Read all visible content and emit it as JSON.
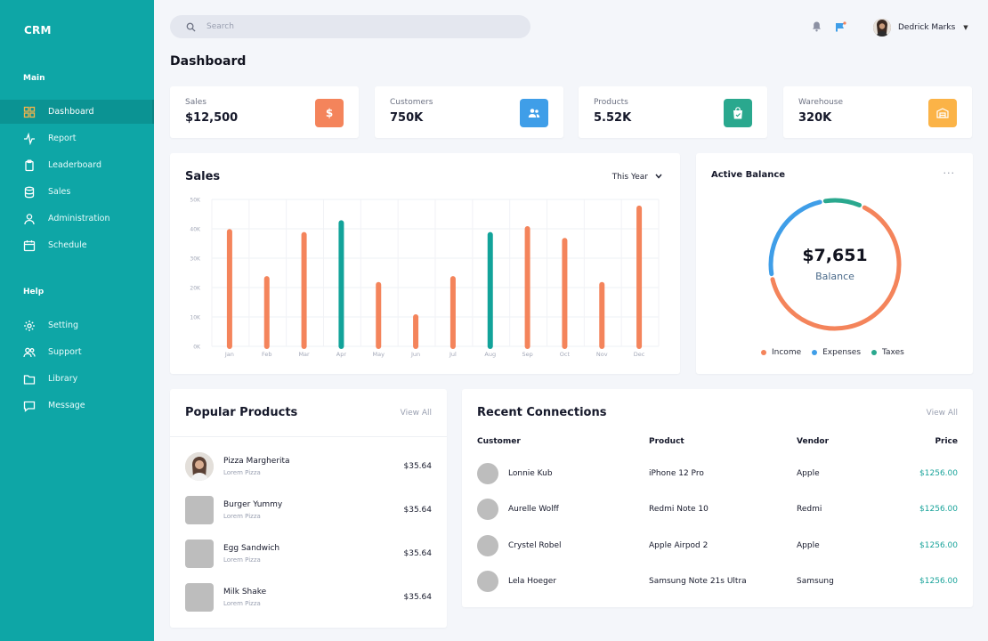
{
  "sidebar": {
    "brand": "CRM",
    "main_label": "Main",
    "help_label": "Help",
    "main_items": [
      {
        "label": "Dashboard",
        "icon": "dashboard-icon",
        "active": true
      },
      {
        "label": "Report",
        "icon": "activity-icon"
      },
      {
        "label": "Leaderboard",
        "icon": "clipboard-icon"
      },
      {
        "label": "Sales",
        "icon": "database-icon"
      },
      {
        "label": "Administration",
        "icon": "user-icon"
      },
      {
        "label": "Schedule",
        "icon": "calendar-icon"
      }
    ],
    "help_items": [
      {
        "label": "Setting",
        "icon": "gear-icon"
      },
      {
        "label": "Support",
        "icon": "users-icon"
      },
      {
        "label": "Library",
        "icon": "folder-icon"
      },
      {
        "label": "Message",
        "icon": "message-icon"
      }
    ]
  },
  "header": {
    "search_placeholder": "Search",
    "user_name": "Dedrick Marks"
  },
  "page": {
    "title": "Dashboard"
  },
  "stats": [
    {
      "label": "Sales",
      "value": "$12,500",
      "icon": "dollar-icon",
      "color": "#f4845b"
    },
    {
      "label": "Customers",
      "value": "750K",
      "icon": "users-icon",
      "color": "#3f9ee8"
    },
    {
      "label": "Products",
      "value": "5.52K",
      "icon": "shopping-bag-icon",
      "color": "#2aa88e"
    },
    {
      "label": "Warehouse",
      "value": "320K",
      "icon": "warehouse-icon",
      "color": "#fbb347"
    }
  ],
  "sales": {
    "title": "Sales",
    "period": "This Year"
  },
  "chart_data": {
    "type": "bar",
    "categories": [
      "Jan",
      "Feb",
      "Mar",
      "Apr",
      "May",
      "Jun",
      "Jul",
      "Aug",
      "Sep",
      "Oct",
      "Nov",
      "Dec"
    ],
    "values": [
      39,
      23,
      38,
      42,
      21,
      10,
      23,
      38,
      40,
      36,
      21,
      47
    ],
    "yticks": [
      "0K",
      "10K",
      "20K",
      "30K",
      "40K",
      "50K"
    ],
    "ylim": [
      0,
      50
    ],
    "highlighted": [
      "Apr",
      "Aug"
    ],
    "colors": {
      "default": "#f4845b",
      "highlight": "#12a39a"
    },
    "grid": true
  },
  "balance": {
    "title": "Active Balance",
    "amount": "$7,651",
    "label": "Balance",
    "segments": [
      {
        "name": "Income",
        "value": 65,
        "color": "#f4845b"
      },
      {
        "name": "Expenses",
        "value": 25,
        "color": "#3f9ee8"
      },
      {
        "name": "Taxes",
        "value": 10,
        "color": "#2aa88e"
      }
    ]
  },
  "popular": {
    "title": "Popular Products",
    "view_all": "View All",
    "items": [
      {
        "name": "Pizza Margherita",
        "sub": "Lorem Pizza",
        "price": "$35.64"
      },
      {
        "name": "Burger Yummy",
        "sub": "Lorem Pizza",
        "price": "$35.64"
      },
      {
        "name": "Egg Sandwich",
        "sub": "Lorem Pizza",
        "price": "$35.64"
      },
      {
        "name": "Milk Shake",
        "sub": "Lorem Pizza",
        "price": "$35.64"
      }
    ]
  },
  "connections": {
    "title": "Recent Connections",
    "view_all": "View All",
    "columns": [
      "Customer",
      "Product",
      "Vendor",
      "Price"
    ],
    "rows": [
      {
        "customer": "Lonnie Kub",
        "product": "iPhone 12 Pro",
        "vendor": "Apple",
        "price": "$1256.00"
      },
      {
        "customer": "Aurelle Wolff",
        "product": "Redmi Note 10",
        "vendor": "Redmi",
        "price": "$1256.00"
      },
      {
        "customer": "Crystel Robel",
        "product": "Apple Airpod 2",
        "vendor": "Apple",
        "price": "$1256.00"
      },
      {
        "customer": "Lela Hoeger",
        "product": "Samsung Note 21s Ultra",
        "vendor": "Samsung",
        "price": "$1256.00"
      }
    ]
  }
}
